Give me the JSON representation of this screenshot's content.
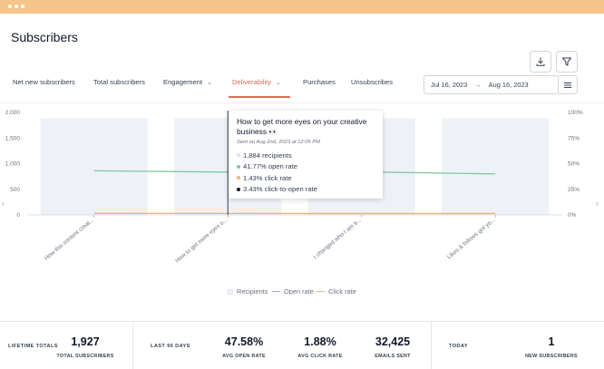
{
  "window": {
    "dot_color": "#ffffff",
    "bar_color": "#f5c58a"
  },
  "page": {
    "title": "Subscribers"
  },
  "toolbar": {
    "download_icon": "download-icon",
    "filter_icon": "filter-icon"
  },
  "tabs": [
    {
      "label": "Net new subscribers",
      "active": false,
      "dropdown": false
    },
    {
      "label": "Total subscribers",
      "active": false,
      "dropdown": false
    },
    {
      "label": "Engagement",
      "active": false,
      "dropdown": true
    },
    {
      "label": "Deliverability",
      "active": true,
      "dropdown": true
    },
    {
      "label": "Purchases",
      "active": false,
      "dropdown": false
    },
    {
      "label": "Unsubscribes",
      "active": false,
      "dropdown": false
    }
  ],
  "date_range": {
    "start": "Jul 16, 2023",
    "separator": "→",
    "end": "Aug 16, 2023"
  },
  "colors": {
    "accent": "#e06b5a",
    "bar": "#eef2f6",
    "open_rate": "#7fc8a0",
    "click_rate": "#f2b27a"
  },
  "chart_data": {
    "type": "bar",
    "categories": [
      "How this content creat...",
      "How to get more eyes o...",
      "I changed who I am tr...",
      "Likes & follows got yo..."
    ],
    "series": [
      {
        "name": "Recipients",
        "type": "bar",
        "axis": "left",
        "values": [
          1884,
          1884,
          1884,
          1884
        ]
      },
      {
        "name": "Open rate",
        "type": "line",
        "axis": "right",
        "values": [
          43,
          41.77,
          42,
          40
        ]
      },
      {
        "name": "Click rate",
        "type": "line",
        "axis": "right",
        "values": [
          1.5,
          1.43,
          1.4,
          1.4
        ]
      }
    ],
    "y_left": {
      "ticks": [
        "2,000",
        "1,500",
        "1,000",
        "500",
        "0"
      ],
      "range": [
        0,
        2000
      ]
    },
    "y_right": {
      "ticks": [
        "100%",
        "75%",
        "50%",
        "25%",
        "0%"
      ],
      "range": [
        0,
        100
      ]
    },
    "legend_position": "bottom",
    "grid": false
  },
  "tooltip": {
    "title": "How to get more eyes on your creative business 👀",
    "sent_on": "Sent on Aug 2nd, 2023 at 12:05 PM",
    "rows": [
      {
        "text": "1,884 recipients",
        "color": "#eef2f6"
      },
      {
        "text": "41.77% open rate",
        "color": "#7fc8a0"
      },
      {
        "text": "1.43% click rate",
        "color": "#f2b27a"
      },
      {
        "text": "3.43% click-to-open rate",
        "color": "#111827"
      }
    ]
  },
  "legend": [
    {
      "label": "Recipients"
    },
    {
      "label": "Open rate"
    },
    {
      "label": "Click rate"
    }
  ],
  "stats": {
    "lifetime_label": "LIFETIME TOTALS",
    "total_subscribers": {
      "value": "1,927",
      "label": "TOTAL SUBSCRIBERS"
    },
    "last90_label": "LAST 90 DAYS",
    "avg_open_rate": {
      "value": "47.58%",
      "label": "AVG OPEN RATE"
    },
    "avg_click_rate": {
      "value": "1.88%",
      "label": "AVG CLICK RATE"
    },
    "emails_sent": {
      "value": "32,425",
      "label": "EMAILS SENT"
    },
    "today_label": "TODAY",
    "new_subscribers": {
      "value": "1",
      "label": "NEW SUBSCRIBERS"
    }
  }
}
